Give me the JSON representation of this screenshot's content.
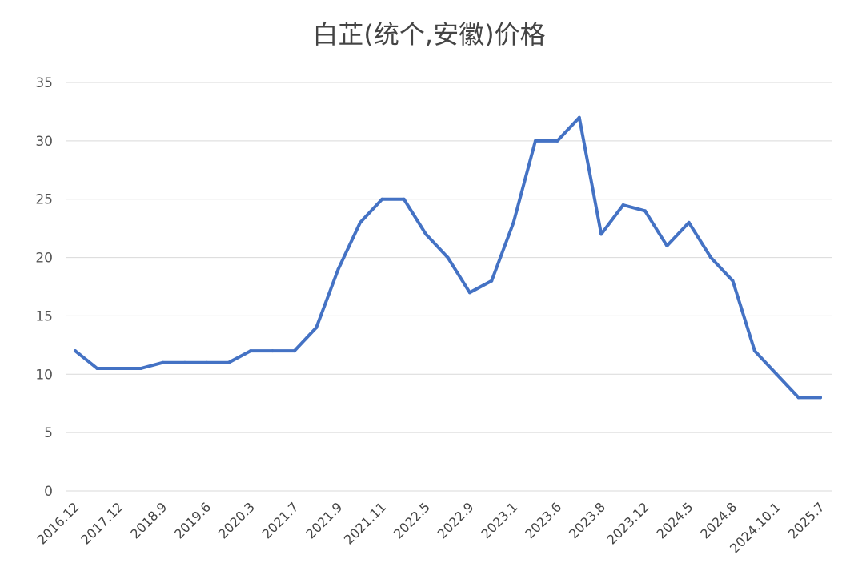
{
  "chart_data": {
    "type": "line",
    "title": "白芷(统个,安徽)价格",
    "xlabel": "",
    "ylabel": "",
    "ylim": [
      0,
      35
    ],
    "yticks": [
      0,
      5,
      10,
      15,
      20,
      25,
      30,
      35
    ],
    "grid": true,
    "legend": "none",
    "line_color": "#4472C4",
    "x_tick_labels": [
      "2016.12",
      "2017.12",
      "2018.9",
      "2019.6",
      "2020.3",
      "2021.7",
      "2021.9",
      "2021.11",
      "2022.5",
      "2022.9",
      "2023.1",
      "2023.6",
      "2023.8",
      "2023.12",
      "2024.5",
      "2024.8",
      "2024.10.1",
      "2025.7"
    ],
    "series": [
      {
        "values": [
          12,
          10.5,
          10.5,
          10.5,
          11,
          11,
          11,
          11,
          12,
          12,
          12,
          14,
          19,
          23,
          25,
          25,
          22,
          20,
          17,
          18,
          23,
          30,
          30,
          32,
          22,
          24.5,
          24,
          21,
          23,
          20,
          18,
          12,
          10,
          8,
          8
        ]
      }
    ]
  }
}
